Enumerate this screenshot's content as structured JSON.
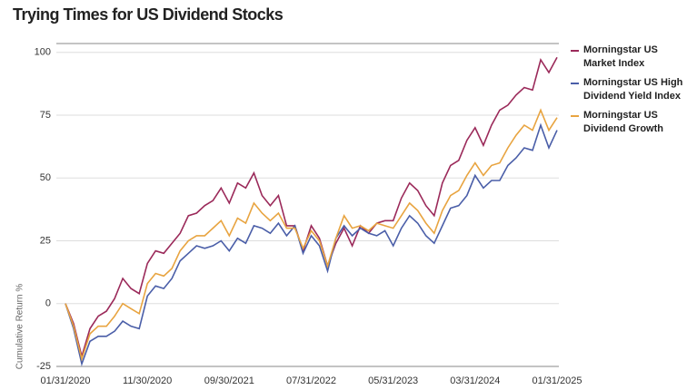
{
  "chart_data": {
    "type": "line",
    "title": "Trying Times for US Dividend Stocks",
    "y_label": "Cumulative Return %",
    "categories": [
      "01/31/2020",
      null,
      null,
      null,
      null,
      null,
      null,
      null,
      null,
      null,
      "11/30/2020",
      null,
      null,
      null,
      null,
      null,
      null,
      null,
      null,
      null,
      "09/30/2021",
      null,
      null,
      null,
      null,
      null,
      null,
      null,
      null,
      null,
      "07/31/2022",
      null,
      null,
      null,
      null,
      null,
      null,
      null,
      null,
      null,
      "05/31/2023",
      null,
      null,
      null,
      null,
      null,
      null,
      null,
      null,
      null,
      "03/31/2024",
      null,
      null,
      null,
      null,
      null,
      null,
      null,
      null,
      null,
      "01/31/2025"
    ],
    "series": [
      {
        "name": "Morningstar US Market Index",
        "color": "#9b2a5a",
        "values": [
          0,
          -8,
          -21,
          -10,
          -5,
          -3,
          2,
          10,
          6,
          4,
          16,
          21,
          20,
          24,
          28,
          35,
          36,
          39,
          41,
          46,
          40,
          48,
          46,
          52,
          43,
          39,
          43,
          31,
          31,
          21,
          31,
          26,
          15,
          24,
          30,
          23,
          31,
          28,
          32,
          33,
          33,
          42,
          48,
          45,
          39,
          35,
          48,
          55,
          57,
          65,
          70,
          63,
          71,
          77,
          79,
          83,
          86,
          85,
          97,
          92,
          98
        ]
      },
      {
        "name": "Morningstar US High Dividend Yield Index",
        "color": "#4a5ea8",
        "values": [
          0,
          -10,
          -24,
          -15,
          -13,
          -13,
          -11,
          -7,
          -9,
          -10,
          3,
          7,
          6,
          10,
          17,
          20,
          23,
          22,
          23,
          25,
          21,
          26,
          24,
          31,
          30,
          28,
          32,
          27,
          31,
          20,
          27,
          23,
          13,
          26,
          31,
          27,
          30,
          28,
          27,
          29,
          23,
          30,
          35,
          32,
          27,
          24,
          31,
          38,
          39,
          43,
          51,
          46,
          49,
          49,
          55,
          58,
          62,
          61,
          71,
          62,
          69
        ]
      },
      {
        "name": "Morningstar US Dividend Growth",
        "color": "#e8a440",
        "values": [
          0,
          -9,
          -22,
          -12,
          -9,
          -9,
          -5,
          0,
          -2,
          -4,
          8,
          12,
          11,
          14,
          21,
          25,
          27,
          27,
          30,
          33,
          27,
          34,
          32,
          40,
          36,
          33,
          36,
          30,
          30,
          22,
          29,
          25,
          15,
          26,
          35,
          30,
          31,
          29,
          32,
          31,
          30,
          35,
          40,
          37,
          32,
          28,
          37,
          43,
          45,
          51,
          56,
          51,
          55,
          56,
          62,
          67,
          71,
          69,
          77,
          69,
          74
        ]
      }
    ],
    "ylim": [
      -25,
      103.5
    ],
    "yticks": [
      -25,
      0,
      25,
      50,
      75,
      100
    ],
    "grid": true,
    "legend": "right"
  }
}
